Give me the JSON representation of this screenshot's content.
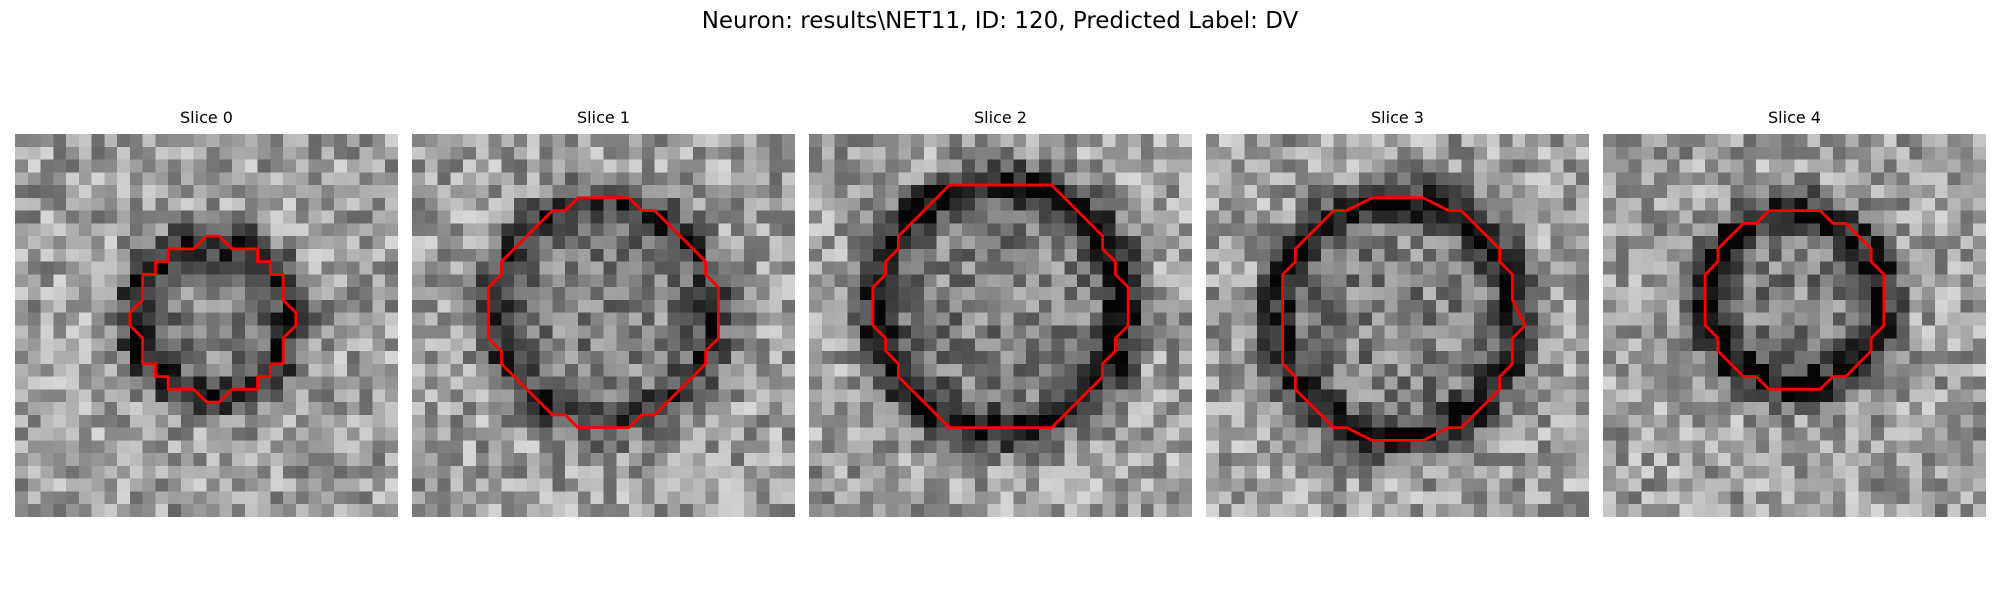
{
  "figure": {
    "title": "Neuron: results\\NET11, ID: 120, Predicted Label: DV"
  },
  "colors": {
    "contour": "#ff0000"
  },
  "slices": [
    {
      "title": "Slice 0",
      "radius": 6.2,
      "cx": 15.5,
      "cy": 14.5,
      "darkness": 0.45,
      "seed": 11
    },
    {
      "title": "Slice 1",
      "radius": 8.8,
      "cx": 15.0,
      "cy": 14.0,
      "darkness": 0.35,
      "seed": 23
    },
    {
      "title": "Slice 2",
      "radius": 9.8,
      "cx": 15.0,
      "cy": 13.5,
      "darkness": 0.55,
      "seed": 37
    },
    {
      "title": "Slice 3",
      "radius": 9.5,
      "cx": 15.0,
      "cy": 14.5,
      "darkness": 0.5,
      "seed": 41
    },
    {
      "title": "Slice 4",
      "radius": 7.0,
      "cx": 15.0,
      "cy": 13.0,
      "darkness": 0.5,
      "seed": 53
    }
  ]
}
